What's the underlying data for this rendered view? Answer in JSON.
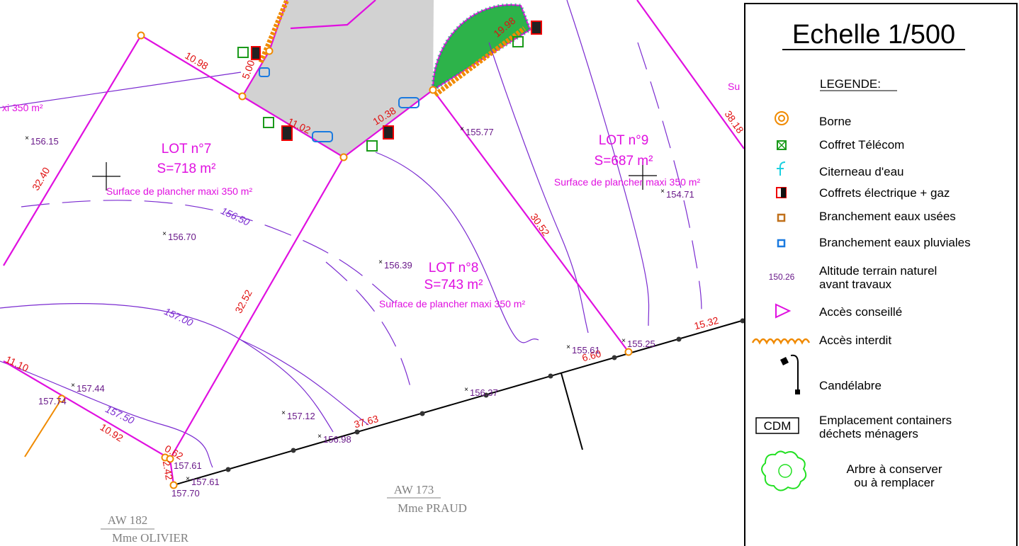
{
  "map": {
    "lots": [
      {
        "name": "LOT n°7",
        "area": "S=718 m²",
        "floor": "Surface de plancher maxi 350 m²"
      },
      {
        "name": "LOT n°8",
        "area": "S=743 m²",
        "floor": "Surface de plancher maxi 350 m²"
      },
      {
        "name": "LOT n°9",
        "area": "S=687 m²",
        "floor": "Surface de plancher maxi 350 m²"
      }
    ],
    "partial_labels": [
      "xi 350 m²",
      "Su"
    ],
    "dimensions": [
      "10.98",
      "5.00",
      "11.02",
      "10.38",
      "19.98",
      "38.18",
      "32.40",
      "30.52",
      "32.52",
      "15.32",
      "6.60",
      "37.63",
      "11.10",
      "10.92",
      "0.62",
      "2.42"
    ],
    "contours": [
      "156.50",
      "157.00",
      "157.50"
    ],
    "altitudes": [
      "156.15",
      "155.77",
      "154.71",
      "156.70",
      "156.39",
      "155.61",
      "155.25",
      "157.44",
      "157.74",
      "156.37",
      "157.12",
      "156.98",
      "157.61",
      "157.61",
      "157.70"
    ],
    "parcels": [
      {
        "id": "AW 182",
        "owner": "Mme OLIVIER"
      },
      {
        "id": "AW 173",
        "owner": "Mme PRAUD"
      }
    ]
  },
  "legend": {
    "scale": "Echelle 1/500",
    "heading": "LEGENDE:",
    "items": [
      {
        "label": [
          "Borne"
        ]
      },
      {
        "label": [
          "Coffret Télécom"
        ]
      },
      {
        "label": [
          "Citerneau  d'eau"
        ]
      },
      {
        "label": [
          "Coffrets électrique + gaz"
        ]
      },
      {
        "label": [
          "Branchement eaux usées"
        ]
      },
      {
        "label": [
          "Branchement eaux pluviales"
        ]
      },
      {
        "sample": "150.26",
        "label": [
          "Altitude terrain naturel",
          "avant travaux"
        ]
      },
      {
        "label": [
          "Accès conseillé"
        ]
      },
      {
        "label": [
          "Accès interdit"
        ]
      },
      {
        "label": [
          "Candélabre"
        ]
      },
      {
        "sample": "CDM",
        "label": [
          "Emplacement containers",
          "déchets ménagers"
        ]
      },
      {
        "label": [
          "Arbre à conserver",
          "ou à remplacer"
        ]
      }
    ]
  }
}
